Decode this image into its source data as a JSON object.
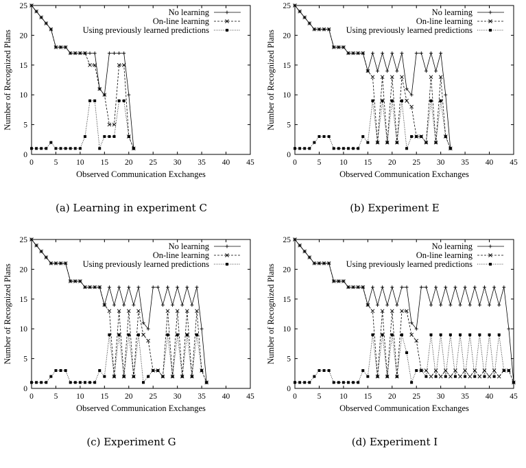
{
  "chart_data": [
    {
      "type": "line",
      "caption": "(a) Learning in experiment C",
      "xlabel": "Observed Communication Exchanges",
      "ylabel": "Number of Recognized Plans",
      "xlim": [
        0,
        45
      ],
      "ylim": [
        0,
        25
      ],
      "xticks": [
        "0",
        "5",
        "10",
        "15",
        "20",
        "25",
        "30",
        "35",
        "40",
        "45"
      ],
      "yticks": [
        "0",
        "5",
        "10",
        "15",
        "20",
        "25"
      ],
      "legend_position": "top-right",
      "series": [
        {
          "name": "No learning",
          "style": "solid",
          "marker": "plus",
          "x": [
            0,
            1,
            2,
            3,
            4,
            5,
            6,
            7,
            8,
            9,
            10,
            11,
            12,
            13,
            14,
            15,
            16,
            17,
            18,
            19,
            20,
            21
          ],
          "values": [
            25,
            24,
            23,
            22,
            21,
            18,
            18,
            18,
            17,
            17,
            17,
            17,
            17,
            17,
            11,
            10,
            17,
            17,
            17,
            17,
            10,
            1
          ]
        },
        {
          "name": "On-line learning",
          "style": "dashed",
          "marker": "cross",
          "x": [
            0,
            1,
            2,
            3,
            4,
            5,
            6,
            7,
            8,
            9,
            10,
            11,
            12,
            13,
            14,
            15,
            16,
            17,
            18,
            19,
            20,
            21
          ],
          "values": [
            25,
            24,
            23,
            22,
            21,
            18,
            18,
            18,
            17,
            17,
            17,
            17,
            15,
            15,
            11,
            10,
            5,
            5,
            15,
            15,
            3,
            1
          ]
        },
        {
          "name": "Using previously learned predictions",
          "style": "dotted",
          "marker": "square",
          "x": [
            0,
            1,
            2,
            3,
            4,
            5,
            6,
            7,
            8,
            9,
            10,
            11,
            12,
            13,
            14,
            15,
            16,
            17,
            18,
            19,
            20,
            21
          ],
          "values": [
            1,
            1,
            1,
            1,
            2,
            1,
            1,
            1,
            1,
            1,
            1,
            3,
            9,
            9,
            1,
            3,
            3,
            3,
            9,
            9,
            3,
            1
          ]
        }
      ]
    },
    {
      "type": "line",
      "caption": "(b) Experiment E",
      "xlabel": "Observed Communication Exchanges",
      "ylabel": "Number of Recognized Plans",
      "xlim": [
        0,
        45
      ],
      "ylim": [
        0,
        25
      ],
      "xticks": [
        "0",
        "5",
        "10",
        "15",
        "20",
        "25",
        "30",
        "35",
        "40",
        "45"
      ],
      "yticks": [
        "0",
        "5",
        "10",
        "15",
        "20",
        "25"
      ],
      "legend_position": "top-right",
      "series": [
        {
          "name": "No learning",
          "style": "solid",
          "marker": "plus",
          "x": [
            0,
            1,
            2,
            3,
            4,
            5,
            6,
            7,
            8,
            9,
            10,
            11,
            12,
            13,
            14,
            15,
            16,
            17,
            18,
            19,
            20,
            21,
            22,
            23,
            24,
            25,
            26,
            27,
            28,
            29,
            30,
            31,
            32
          ],
          "values": [
            25,
            24,
            23,
            22,
            21,
            21,
            21,
            21,
            18,
            18,
            18,
            17,
            17,
            17,
            17,
            14,
            17,
            14,
            17,
            14,
            17,
            14,
            17,
            11,
            10,
            17,
            17,
            14,
            17,
            14,
            17,
            10,
            1
          ]
        },
        {
          "name": "On-line learning",
          "style": "dashed",
          "marker": "cross",
          "x": [
            0,
            1,
            2,
            3,
            4,
            5,
            6,
            7,
            8,
            9,
            10,
            11,
            12,
            13,
            14,
            15,
            16,
            17,
            18,
            19,
            20,
            21,
            22,
            23,
            24,
            25,
            26,
            27,
            28,
            29,
            30,
            31,
            32
          ],
          "values": [
            25,
            24,
            23,
            22,
            21,
            21,
            21,
            21,
            18,
            18,
            18,
            17,
            17,
            17,
            17,
            14,
            13,
            2,
            13,
            2,
            13,
            2,
            13,
            9,
            8,
            3,
            3,
            2,
            13,
            2,
            13,
            3,
            1
          ]
        },
        {
          "name": "Using previously learned predictions",
          "style": "dotted",
          "marker": "square",
          "x": [
            0,
            1,
            2,
            3,
            4,
            5,
            6,
            7,
            8,
            9,
            10,
            11,
            12,
            13,
            14,
            15,
            16,
            17,
            18,
            19,
            20,
            21,
            22,
            23,
            24,
            25,
            26,
            27,
            28,
            29,
            30,
            31,
            32
          ],
          "values": [
            1,
            1,
            1,
            1,
            2,
            3,
            3,
            3,
            1,
            1,
            1,
            1,
            1,
            1,
            3,
            2,
            9,
            2,
            9,
            2,
            9,
            2,
            9,
            1,
            3,
            3,
            3,
            2,
            9,
            2,
            9,
            3,
            1
          ]
        }
      ]
    },
    {
      "type": "line",
      "caption": "(c) Experiment G",
      "xlabel": "Observed Communication Exchanges",
      "ylabel": "Number of Recognized Plans",
      "xlim": [
        0,
        45
      ],
      "ylim": [
        0,
        25
      ],
      "xticks": [
        "0",
        "5",
        "10",
        "15",
        "20",
        "25",
        "30",
        "35",
        "40",
        "45"
      ],
      "yticks": [
        "0",
        "5",
        "10",
        "15",
        "20",
        "25"
      ],
      "legend_position": "top-right",
      "series": [
        {
          "name": "No learning",
          "style": "solid",
          "marker": "plus",
          "x": [
            0,
            1,
            2,
            3,
            4,
            5,
            6,
            7,
            8,
            9,
            10,
            11,
            12,
            13,
            14,
            15,
            16,
            17,
            18,
            19,
            20,
            21,
            22,
            23,
            24,
            25,
            26,
            27,
            28,
            29,
            30,
            31,
            32,
            33,
            34,
            35,
            36
          ],
          "values": [
            25,
            24,
            23,
            22,
            21,
            21,
            21,
            21,
            18,
            18,
            18,
            17,
            17,
            17,
            17,
            14,
            17,
            14,
            17,
            14,
            17,
            14,
            17,
            11,
            10,
            17,
            17,
            14,
            17,
            14,
            17,
            14,
            17,
            14,
            17,
            10,
            1
          ]
        },
        {
          "name": "On-line learning",
          "style": "dashed",
          "marker": "cross",
          "x": [
            0,
            1,
            2,
            3,
            4,
            5,
            6,
            7,
            8,
            9,
            10,
            11,
            12,
            13,
            14,
            15,
            16,
            17,
            18,
            19,
            20,
            21,
            22,
            23,
            24,
            25,
            26,
            27,
            28,
            29,
            30,
            31,
            32,
            33,
            34,
            35,
            36
          ],
          "values": [
            25,
            24,
            23,
            22,
            21,
            21,
            21,
            21,
            18,
            18,
            18,
            17,
            17,
            17,
            17,
            14,
            13,
            2,
            13,
            2,
            13,
            2,
            13,
            9,
            8,
            3,
            3,
            2,
            13,
            2,
            13,
            2,
            13,
            2,
            13,
            3,
            1
          ]
        },
        {
          "name": "Using previously learned predictions",
          "style": "dotted",
          "marker": "square",
          "x": [
            0,
            1,
            2,
            3,
            4,
            5,
            6,
            7,
            8,
            9,
            10,
            11,
            12,
            13,
            14,
            15,
            16,
            17,
            18,
            19,
            20,
            21,
            22,
            23,
            24,
            25,
            26,
            27,
            28,
            29,
            30,
            31,
            32,
            33,
            34,
            35,
            36
          ],
          "values": [
            1,
            1,
            1,
            1,
            2,
            3,
            3,
            3,
            1,
            1,
            1,
            1,
            1,
            1,
            3,
            2,
            9,
            2,
            9,
            2,
            9,
            2,
            9,
            1,
            2,
            3,
            3,
            2,
            9,
            2,
            9,
            2,
            9,
            2,
            9,
            3,
            1
          ]
        }
      ]
    },
    {
      "type": "line",
      "caption": "(d) Experiment I",
      "xlabel": "Observed Communication Exchanges",
      "ylabel": "Number of Recognized Plans",
      "xlim": [
        0,
        45
      ],
      "ylim": [
        0,
        25
      ],
      "xticks": [
        "0",
        "5",
        "10",
        "15",
        "20",
        "25",
        "30",
        "35",
        "40",
        "45"
      ],
      "yticks": [
        "0",
        "5",
        "10",
        "15",
        "20",
        "25"
      ],
      "legend_position": "top-right",
      "series": [
        {
          "name": "No learning",
          "style": "solid",
          "marker": "plus",
          "x": [
            0,
            1,
            2,
            3,
            4,
            5,
            6,
            7,
            8,
            9,
            10,
            11,
            12,
            13,
            14,
            15,
            16,
            17,
            18,
            19,
            20,
            21,
            22,
            23,
            24,
            25,
            26,
            27,
            28,
            29,
            30,
            31,
            32,
            33,
            34,
            35,
            36,
            37,
            38,
            39,
            40,
            41,
            42,
            43,
            44,
            45
          ],
          "values": [
            25,
            24,
            23,
            22,
            21,
            21,
            21,
            21,
            18,
            18,
            18,
            17,
            17,
            17,
            17,
            14,
            17,
            14,
            17,
            14,
            17,
            14,
            17,
            17,
            11,
            10,
            17,
            17,
            14,
            17,
            14,
            17,
            14,
            17,
            14,
            17,
            14,
            17,
            14,
            17,
            14,
            17,
            14,
            17,
            10,
            1
          ]
        },
        {
          "name": "On-line learning",
          "style": "dashed",
          "marker": "cross",
          "x": [
            0,
            1,
            2,
            3,
            4,
            5,
            6,
            7,
            8,
            9,
            10,
            11,
            12,
            13,
            14,
            15,
            16,
            17,
            18,
            19,
            20,
            21,
            22,
            23,
            24,
            25,
            26,
            27,
            28,
            29,
            30,
            31,
            32,
            33,
            34,
            35,
            36,
            37,
            38,
            39,
            40,
            41,
            42,
            43,
            44,
            45
          ],
          "values": [
            25,
            24,
            23,
            22,
            21,
            21,
            21,
            21,
            18,
            18,
            18,
            17,
            17,
            17,
            17,
            14,
            13,
            2,
            13,
            2,
            13,
            2,
            13,
            13,
            9,
            8,
            3,
            3,
            2,
            3,
            2,
            3,
            2,
            3,
            2,
            3,
            2,
            3,
            2,
            3,
            2,
            3,
            2,
            3,
            3,
            1
          ]
        },
        {
          "name": "Using previously learned predictions",
          "style": "dotted",
          "marker": "square",
          "x": [
            0,
            1,
            2,
            3,
            4,
            5,
            6,
            7,
            8,
            9,
            10,
            11,
            12,
            13,
            14,
            15,
            16,
            17,
            18,
            19,
            20,
            21,
            22,
            23,
            24,
            25,
            26,
            27,
            28,
            29,
            30,
            31,
            32,
            33,
            34,
            35,
            36,
            37,
            38,
            39,
            40,
            41,
            42,
            43,
            44,
            45
          ],
          "values": [
            1,
            1,
            1,
            1,
            2,
            3,
            3,
            3,
            1,
            1,
            1,
            1,
            1,
            1,
            3,
            2,
            9,
            2,
            9,
            2,
            9,
            2,
            9,
            6,
            1,
            3,
            3,
            2,
            9,
            2,
            9,
            2,
            9,
            2,
            9,
            2,
            9,
            2,
            9,
            2,
            9,
            2,
            9,
            3,
            3,
            1
          ]
        }
      ]
    }
  ]
}
